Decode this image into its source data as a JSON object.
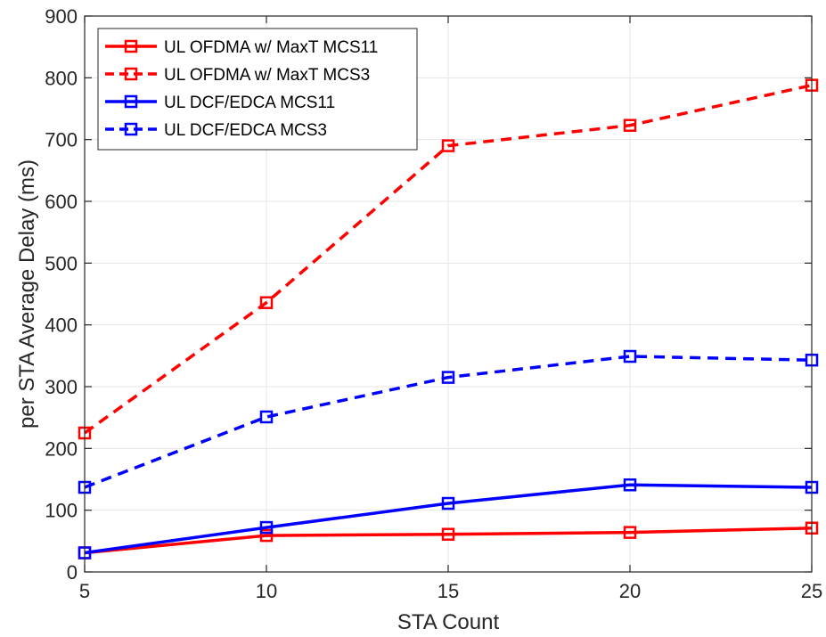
{
  "chart_data": {
    "type": "line",
    "title": "",
    "xlabel": "STA Count",
    "ylabel": "per STA Average Delay (ms)",
    "xlim": [
      5,
      25
    ],
    "ylim": [
      0,
      900
    ],
    "xticks": [
      "5",
      "10",
      "15",
      "20",
      "25"
    ],
    "yticks": [
      "0",
      "100",
      "200",
      "300",
      "400",
      "500",
      "600",
      "700",
      "800",
      "900"
    ],
    "grid": true,
    "legend_position": "top-left",
    "x": [
      5,
      10,
      15,
      20,
      25
    ],
    "series": [
      {
        "name": "UL OFDMA w/ MaxT MCS11",
        "color": "#ff0000",
        "dash": "solid",
        "marker": "square",
        "values": [
          31,
          59,
          61,
          64,
          71
        ]
      },
      {
        "name": "UL OFDMA w/ MaxT MCS3",
        "color": "#ff0000",
        "dash": "dashed",
        "marker": "square",
        "values": [
          225,
          436,
          690,
          723,
          788
        ]
      },
      {
        "name": "UL DCF/EDCA MCS11",
        "color": "#0000ff",
        "dash": "solid",
        "marker": "square",
        "values": [
          31,
          72,
          111,
          141,
          137
        ]
      },
      {
        "name": "UL DCF/EDCA MCS3",
        "color": "#0000ff",
        "dash": "dashed",
        "marker": "square",
        "values": [
          137,
          251,
          315,
          349,
          343
        ]
      }
    ]
  }
}
